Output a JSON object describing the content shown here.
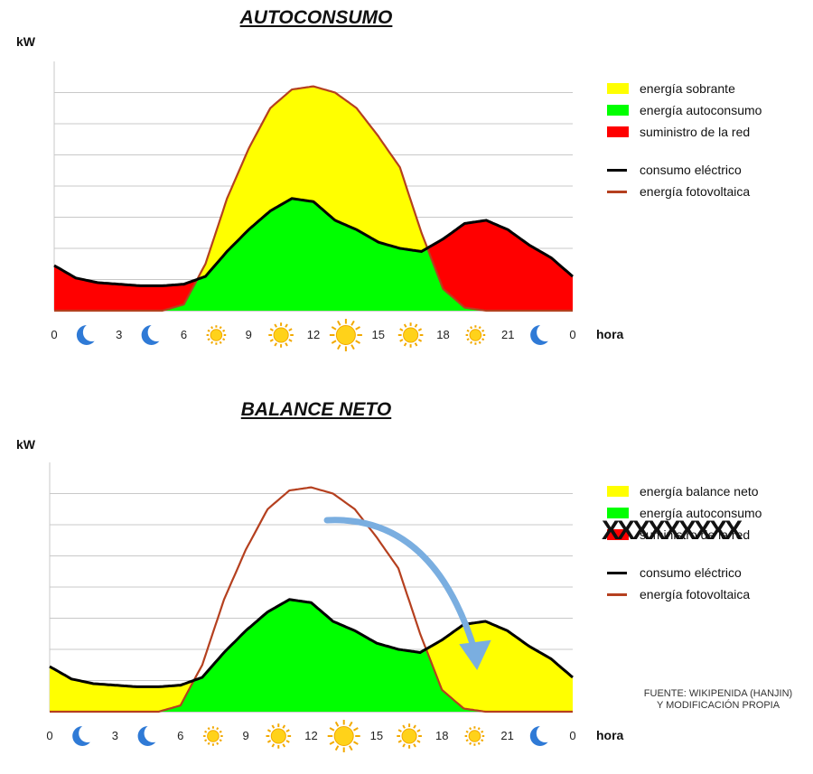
{
  "axis": {
    "y_unit": "kW",
    "x_unit": "hora",
    "tick_labels": [
      "0",
      "3",
      "6",
      "9",
      "12",
      "15",
      "18",
      "21",
      "0"
    ],
    "tick_icons": [
      "moon-icon",
      "moon-icon",
      "sun-icon",
      "sun-icon",
      "sun-icon",
      "sun-icon",
      "sun-icon",
      "moon-icon"
    ]
  },
  "colors": {
    "sobrante": "#ffff00",
    "autoconsumo": "#00ff00",
    "red": "#ff0000",
    "consumo": "#000000",
    "fotovoltaica": "#b5401f",
    "arrow": "#7aaee0"
  },
  "chart_data": [
    {
      "type": "area",
      "title": "AUTOCONSUMO",
      "ylabel": "kW",
      "xlabel": "hora",
      "xlim": [
        0,
        24
      ],
      "ylim": [
        0,
        8
      ],
      "grid": true,
      "legend_position": "right",
      "x": [
        0,
        1,
        2,
        3,
        4,
        5,
        6,
        7,
        8,
        9,
        10,
        11,
        12,
        13,
        14,
        15,
        16,
        17,
        18,
        19,
        20,
        21,
        22,
        23,
        24
      ],
      "series": [
        {
          "name": "consumo eléctrico",
          "values": [
            1.45,
            1.05,
            0.9,
            0.85,
            0.8,
            0.8,
            0.85,
            1.1,
            1.9,
            2.6,
            3.2,
            3.6,
            3.5,
            2.9,
            2.6,
            2.2,
            2.0,
            1.9,
            2.3,
            2.8,
            2.9,
            2.6,
            2.1,
            1.7,
            1.1
          ]
        },
        {
          "name": "energía fotovoltaica",
          "values": [
            0,
            0,
            0,
            0,
            0,
            0,
            0.2,
            1.5,
            3.6,
            5.2,
            6.5,
            7.1,
            7.2,
            7.0,
            6.5,
            5.6,
            4.6,
            2.5,
            0.7,
            0.1,
            0,
            0,
            0,
            0,
            0
          ]
        }
      ],
      "legend": [
        "energía sobrante",
        "energía autoconsumo",
        "suministro de la red",
        "consumo eléctrico",
        "energía fotovoltaica"
      ]
    },
    {
      "type": "area",
      "title": "BALANCE NETO",
      "ylabel": "kW",
      "xlabel": "hora",
      "xlim": [
        0,
        24
      ],
      "ylim": [
        0,
        8
      ],
      "grid": true,
      "legend_position": "right",
      "x": [
        0,
        1,
        2,
        3,
        4,
        5,
        6,
        7,
        8,
        9,
        10,
        11,
        12,
        13,
        14,
        15,
        16,
        17,
        18,
        19,
        20,
        21,
        22,
        23,
        24
      ],
      "series": [
        {
          "name": "consumo eléctrico",
          "values": [
            1.45,
            1.05,
            0.9,
            0.85,
            0.8,
            0.8,
            0.85,
            1.1,
            1.9,
            2.6,
            3.2,
            3.6,
            3.5,
            2.9,
            2.6,
            2.2,
            2.0,
            1.9,
            2.3,
            2.8,
            2.9,
            2.6,
            2.1,
            1.7,
            1.1
          ]
        },
        {
          "name": "energía fotovoltaica",
          "values": [
            0,
            0,
            0,
            0,
            0,
            0,
            0.2,
            1.5,
            3.6,
            5.2,
            6.5,
            7.1,
            7.2,
            7.0,
            6.5,
            5.6,
            4.6,
            2.5,
            0.7,
            0.1,
            0,
            0,
            0,
            0,
            0
          ]
        }
      ],
      "legend": [
        "energía balance neto",
        "energía autoconsumo",
        "suministro de la red",
        "consumo eléctrico",
        "energía fotovoltaica"
      ],
      "crossed_out_legend": "suministro de la red",
      "crossed_out_marks": "XXXXXXXXX"
    }
  ],
  "source": {
    "line1": "FUENTE: WIKIPENIDA (HANJIN)",
    "line2": "Y MODIFICACIÓN PROPIA"
  }
}
